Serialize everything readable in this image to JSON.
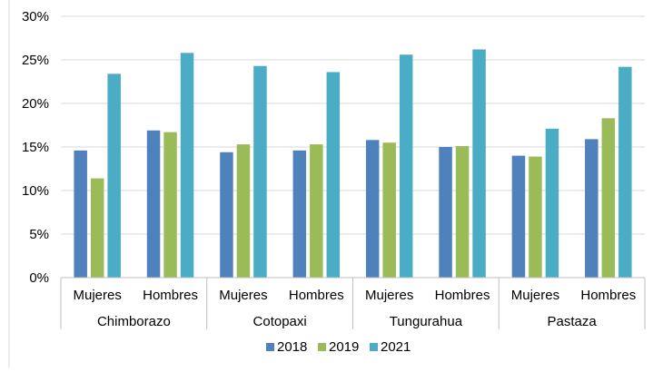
{
  "chart_data": {
    "type": "bar",
    "groups": [
      {
        "name": "Chimborazo",
        "categories": [
          "Mujeres",
          "Hombres"
        ]
      },
      {
        "name": "Cotopaxi",
        "categories": [
          "Mujeres",
          "Hombres"
        ]
      },
      {
        "name": "Tungurahua",
        "categories": [
          "Mujeres",
          "Hombres"
        ]
      },
      {
        "name": "Pastaza",
        "categories": [
          "Mujeres",
          "Hombres"
        ]
      }
    ],
    "series": [
      {
        "name": "2018",
        "color": "#4f81bd",
        "values": [
          14.6,
          16.9,
          14.4,
          14.6,
          15.8,
          15.0,
          14.0,
          15.9
        ]
      },
      {
        "name": "2019",
        "color": "#9bbb59",
        "values": [
          11.4,
          16.7,
          15.3,
          15.3,
          15.5,
          15.1,
          13.9,
          18.3
        ]
      },
      {
        "name": "2021",
        "color": "#4bacc6",
        "values": [
          23.4,
          25.8,
          24.3,
          23.6,
          25.6,
          26.2,
          17.1,
          24.2
        ]
      }
    ],
    "y_ticks": [
      "0%",
      "5%",
      "10%",
      "15%",
      "20%",
      "25%",
      "30%"
    ],
    "ylim": [
      0,
      30
    ],
    "grid": true,
    "legend_position": "bottom"
  }
}
